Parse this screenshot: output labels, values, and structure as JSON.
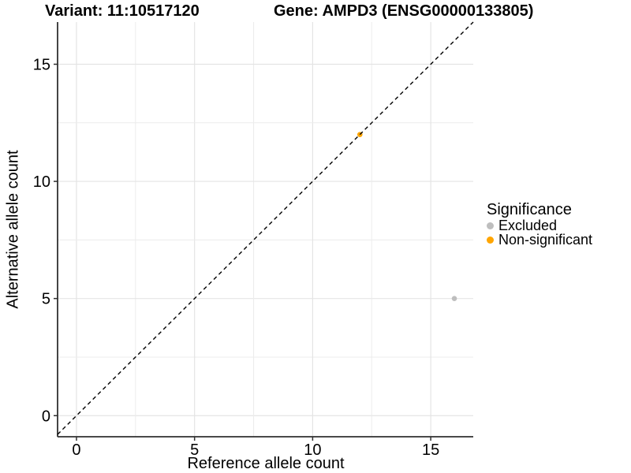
{
  "chart_data": {
    "type": "scatter",
    "title": "Variant: 11:10517120    Gene: AMPD3 (ENSG00000133805)",
    "title_left": "Variant: 11:10517120",
    "title_right": "Gene: AMPD3 (ENSG00000133805)",
    "xlabel": "Reference allele count",
    "ylabel": "Alternative allele count",
    "xlim": [
      -0.8,
      16.8
    ],
    "ylim": [
      -0.9,
      16.8
    ],
    "x_ticks": [
      0,
      5,
      10,
      15
    ],
    "y_ticks": [
      0,
      5,
      10,
      15
    ],
    "grid_values": [
      0,
      2.5,
      5,
      7.5,
      10,
      12.5,
      15
    ],
    "grid": true,
    "legend_title": "Significance",
    "legend_position": "right",
    "identity_line": {
      "slope": 1,
      "intercept": 0,
      "style": "dashed",
      "color": "#000000"
    },
    "series": [
      {
        "name": "Excluded",
        "color": "#bebebe",
        "points": [
          {
            "x": 16,
            "y": 5
          }
        ]
      },
      {
        "name": "Non-significant",
        "color": "#ffa500",
        "points": [
          {
            "x": 12,
            "y": 12
          }
        ]
      }
    ],
    "colors": {
      "grid_major": "#e4e4e4",
      "grid_minor": "#ececec",
      "axis_line": "#2f2f2f",
      "tick_mark": "#2f2f2f",
      "text": "#000000",
      "background": "#ffffff"
    }
  }
}
